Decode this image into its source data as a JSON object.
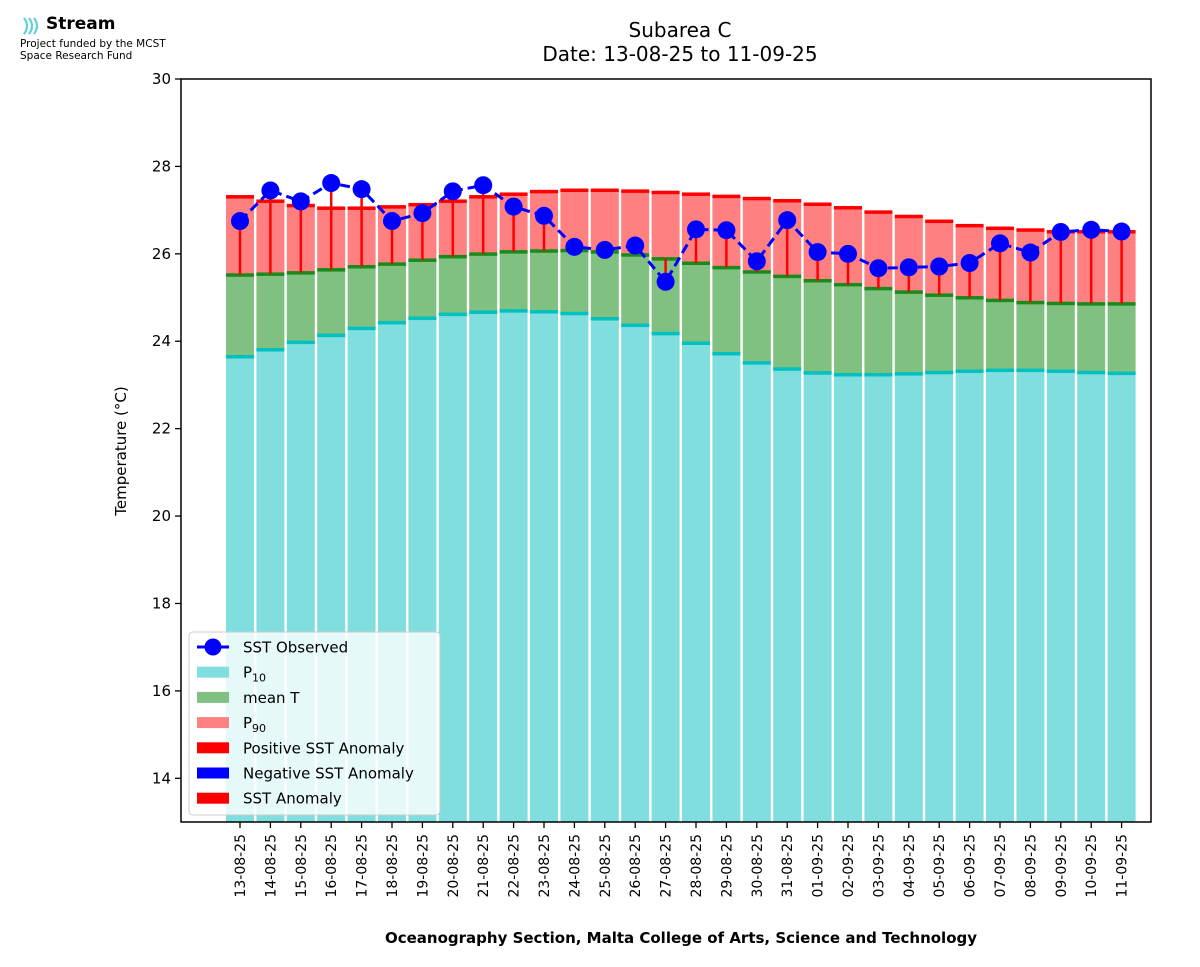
{
  "logo": {
    "name": "Stream",
    "line1": "Project funded by the MCST",
    "line2": "Space Research Fund"
  },
  "chart_data": {
    "type": "bar",
    "title": "Subarea C",
    "subtitle": "Date: 13-08-25 to 11-09-25",
    "xlabel": "Oceanography Section, Malta College of Arts, Science and Technology",
    "ylabel": "Temperature (°C)",
    "ylim": [
      13,
      30
    ],
    "yticks": [
      14,
      16,
      18,
      20,
      22,
      24,
      26,
      28,
      30
    ],
    "categories": [
      "13-08-25",
      "14-08-25",
      "15-08-25",
      "16-08-25",
      "17-08-25",
      "18-08-25",
      "19-08-25",
      "20-08-25",
      "21-08-25",
      "22-08-25",
      "23-08-25",
      "24-08-25",
      "25-08-25",
      "26-08-25",
      "27-08-25",
      "28-08-25",
      "29-08-25",
      "30-08-25",
      "31-08-25",
      "01-09-25",
      "02-09-25",
      "03-09-25",
      "04-09-25",
      "05-09-25",
      "06-09-25",
      "07-09-25",
      "08-09-25",
      "09-09-25",
      "10-09-25",
      "11-09-25"
    ],
    "series": [
      {
        "name": "P10",
        "color": "#80deDF",
        "edge": "#00c0c0",
        "values": [
          23.65,
          23.81,
          23.98,
          24.14,
          24.3,
          24.43,
          24.53,
          24.62,
          24.67,
          24.7,
          24.68,
          24.64,
          24.52,
          24.37,
          24.18,
          23.96,
          23.72,
          23.51,
          23.37,
          23.28,
          23.24,
          23.24,
          23.26,
          23.29,
          23.32,
          23.34,
          23.34,
          23.32,
          23.29,
          23.27
        ]
      },
      {
        "name": "mean T",
        "color": "#80c080",
        "edge": "#1a8a1a",
        "values": [
          25.52,
          25.54,
          25.57,
          25.64,
          25.71,
          25.77,
          25.86,
          25.94,
          26.0,
          26.05,
          26.07,
          26.08,
          26.05,
          25.98,
          25.89,
          25.79,
          25.69,
          25.59,
          25.49,
          25.39,
          25.3,
          25.21,
          25.13,
          25.06,
          25.0,
          24.94,
          24.89,
          24.87,
          24.86,
          24.86
        ]
      },
      {
        "name": "P90",
        "color": "#ff8080",
        "edge": "#ff0000",
        "values": [
          27.31,
          27.21,
          27.11,
          27.05,
          27.05,
          27.08,
          27.13,
          27.21,
          27.31,
          27.37,
          27.43,
          27.46,
          27.46,
          27.44,
          27.41,
          27.37,
          27.32,
          27.27,
          27.22,
          27.14,
          27.06,
          26.96,
          26.86,
          26.75,
          26.65,
          26.59,
          26.55,
          26.51,
          26.51,
          26.51
        ]
      },
      {
        "name": "SST Observed",
        "color": "#0000ff",
        "values": [
          26.75,
          27.45,
          27.2,
          27.62,
          27.48,
          26.75,
          26.93,
          27.43,
          27.57,
          27.08,
          26.87,
          26.16,
          26.09,
          26.19,
          25.36,
          26.56,
          26.54,
          25.83,
          26.77,
          26.04,
          26.0,
          25.67,
          25.69,
          25.71,
          25.79,
          26.24,
          26.03,
          26.5,
          26.55,
          26.51
        ]
      }
    ],
    "anomaly_color": "#ff0000",
    "legend": {
      "location": "lower-left",
      "entries": [
        {
          "label": "SST Observed",
          "kind": "line-marker",
          "color": "#0000ff"
        },
        {
          "label": "P",
          "sub": "10",
          "kind": "patch",
          "color": "#80deDF"
        },
        {
          "label": "mean T",
          "kind": "patch",
          "color": "#80c080"
        },
        {
          "label": "P",
          "sub": "90",
          "kind": "patch",
          "color": "#ff8080"
        },
        {
          "label": "Positive SST Anomaly",
          "kind": "patch",
          "color": "#ff0000"
        },
        {
          "label": "Negative SST Anomaly",
          "kind": "patch",
          "color": "#0000ff"
        },
        {
          "label": "SST Anomaly",
          "kind": "patch",
          "color": "#ff0000"
        }
      ]
    },
    "grid": false
  }
}
